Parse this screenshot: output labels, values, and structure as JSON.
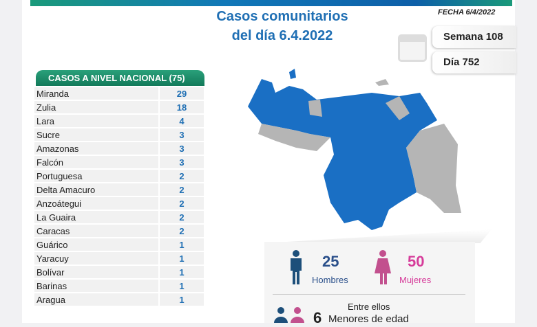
{
  "header": {
    "title_line1": "Casos comunitarios",
    "title_line2": "del día 6.4.2022",
    "fecha": "FECHA 6/4/2022",
    "semana": "Semana 108",
    "dia": "Día 752"
  },
  "table": {
    "title": "CASOS A NIVEL NACIONAL  (75)",
    "rows": [
      [
        "Miranda",
        "29"
      ],
      [
        "Zulia",
        "18"
      ],
      [
        "Lara",
        "4"
      ],
      [
        "Sucre",
        "3"
      ],
      [
        "Amazonas",
        "3"
      ],
      [
        "Falcón",
        "3"
      ],
      [
        "Portuguesa",
        "2"
      ],
      [
        "Delta Amacuro",
        "2"
      ],
      [
        "Anzoátegui",
        "2"
      ],
      [
        "La Guaira",
        "2"
      ],
      [
        "Caracas",
        "2"
      ],
      [
        "Guárico",
        "1"
      ],
      [
        "Yaracuy",
        "1"
      ],
      [
        "Bolívar",
        "1"
      ],
      [
        "Barinas",
        "1"
      ],
      [
        "Aragua",
        "1"
      ]
    ]
  },
  "stats": {
    "men_count": "25",
    "men_label": "Hombres",
    "women_count": "50",
    "women_label": "Mujeres",
    "minors_intro": "Entre ellos",
    "minors_count": "6",
    "minors_label": "Menores de edad"
  },
  "colors": {
    "blue": "#1f6fb4",
    "pink": "#d63c9a",
    "navy": "#1d4f7a",
    "map_blue": "#1a6fc4",
    "map_gray": "#b5b5b5"
  }
}
